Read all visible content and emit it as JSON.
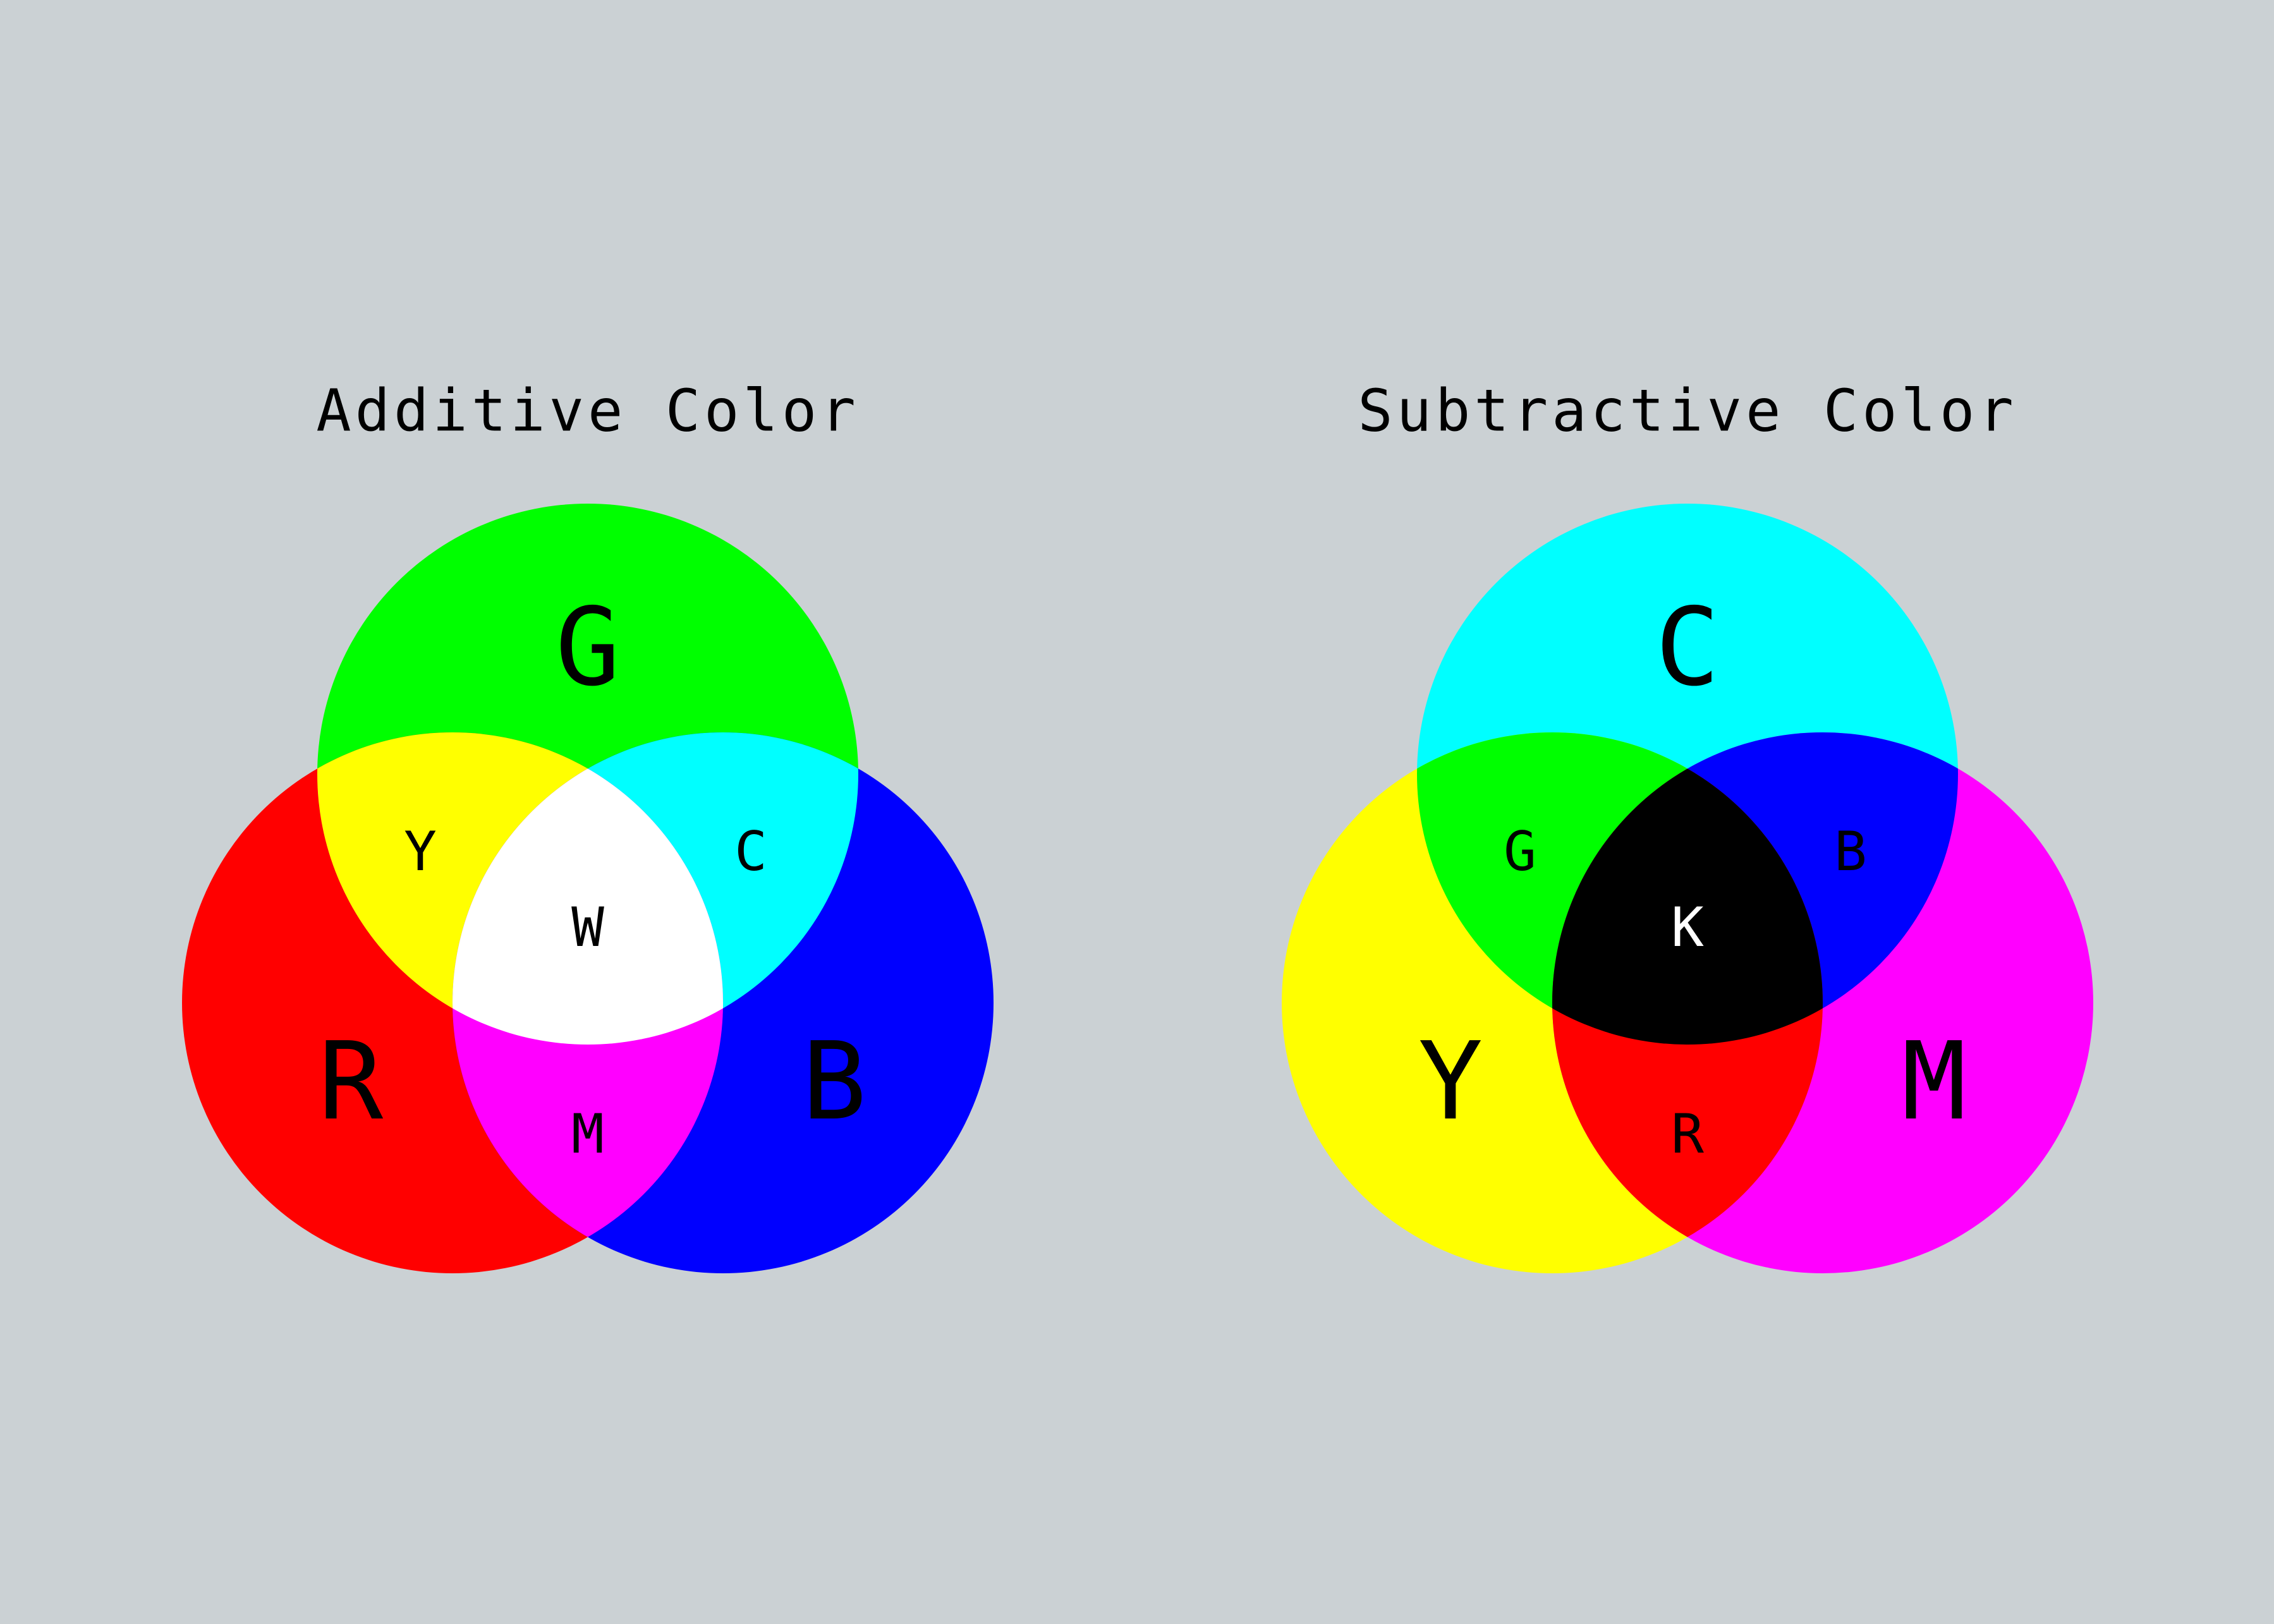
{
  "background_color": "#cbd1d4",
  "panels": [
    {
      "title": "Additive Color",
      "circles": [
        {
          "label": "G",
          "color": "#00ff00",
          "label_color": "#000000"
        },
        {
          "label": "R",
          "color": "#ff0000",
          "label_color": "#000000"
        },
        {
          "label": "B",
          "color": "#0000ff",
          "label_color": "#000000"
        }
      ],
      "overlaps": {
        "top_left": {
          "label": "Y",
          "color": "#ffff00",
          "label_color": "#000000"
        },
        "top_right": {
          "label": "C",
          "color": "#00ffff",
          "label_color": "#000000"
        },
        "bottom": {
          "label": "M",
          "color": "#ff00ff",
          "label_color": "#000000"
        },
        "center": {
          "label": "W",
          "color": "#ffffff",
          "label_color": "#000000"
        }
      }
    },
    {
      "title": "Subtractive Color",
      "circles": [
        {
          "label": "C",
          "color": "#00ffff",
          "label_color": "#000000"
        },
        {
          "label": "Y",
          "color": "#ffff00",
          "label_color": "#000000"
        },
        {
          "label": "M",
          "color": "#ff00ff",
          "label_color": "#000000"
        }
      ],
      "overlaps": {
        "top_left": {
          "label": "G",
          "color": "#00ff00",
          "label_color": "#000000"
        },
        "top_right": {
          "label": "B",
          "color": "#0000ff",
          "label_color": "#000000"
        },
        "bottom": {
          "label": "R",
          "color": "#ff0000",
          "label_color": "#000000"
        },
        "center": {
          "label": "K",
          "color": "#000000",
          "label_color": "#ffffff"
        }
      }
    }
  ]
}
